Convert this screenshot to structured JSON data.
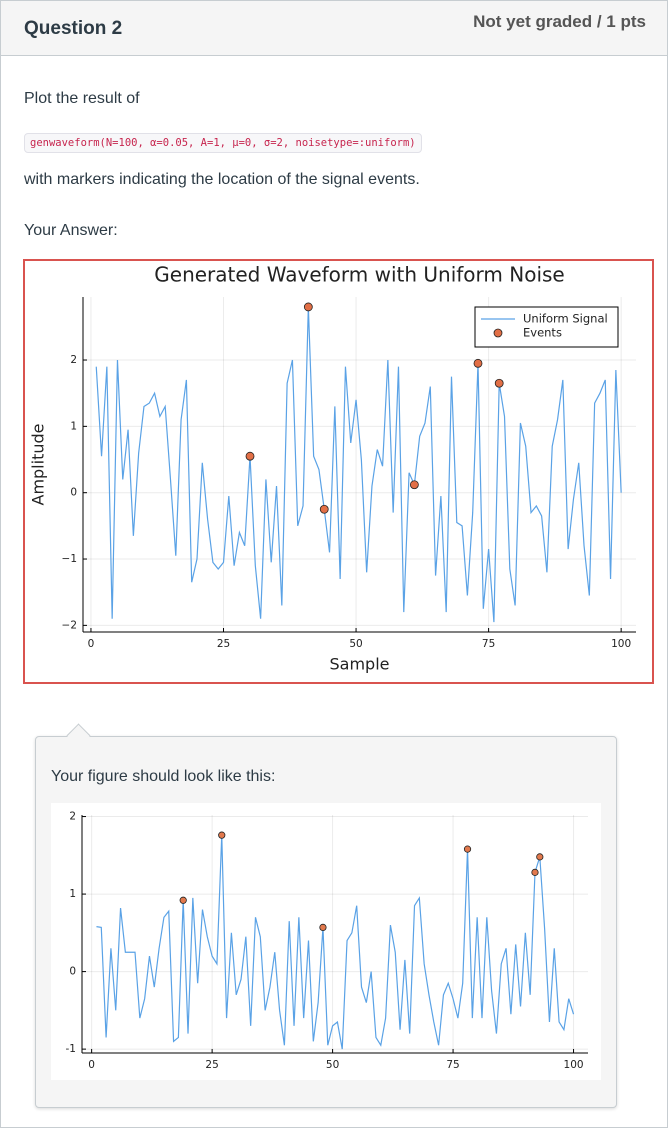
{
  "header": {
    "title": "Question 2",
    "status": "Not yet graded / 1 pts"
  },
  "question": {
    "intro": "Plot the result of",
    "code": "genwaveform(N=100, α=0.05, A=1, μ=0, σ=2, noisetype=:uniform)",
    "outro": "with markers indicating the location of the signal events."
  },
  "answer_label": "Your Answer:",
  "hint": "Your figure should look like this:",
  "chart_data": [
    {
      "type": "line",
      "title": "Generated Waveform with Uniform Noise",
      "xlabel": "Sample",
      "ylabel": "Amplitude",
      "xlim": [
        -1.5,
        102.8
      ],
      "ylim": [
        -2.1,
        2.95
      ],
      "xticks": [
        0,
        25,
        50,
        75,
        100
      ],
      "yticks": [
        {
          "value": -2,
          "label": "−2"
        },
        {
          "value": -1,
          "label": "−1"
        },
        0,
        1,
        2
      ],
      "grid": true,
      "legend": "top-right",
      "series": [
        {
          "name": "Uniform Signal",
          "type": "line",
          "color": "#5aa2e6",
          "x": [
            1,
            2,
            3,
            4,
            5,
            6,
            7,
            8,
            9,
            10,
            11,
            12,
            13,
            14,
            15,
            16,
            17,
            18,
            19,
            20,
            21,
            22,
            23,
            24,
            25,
            26,
            27,
            28,
            29,
            30,
            31,
            32,
            33,
            34,
            35,
            36,
            37,
            38,
            39,
            40,
            41,
            42,
            43,
            44,
            45,
            46,
            47,
            48,
            49,
            50,
            51,
            52,
            53,
            54,
            55,
            56,
            57,
            58,
            59,
            60,
            61,
            62,
            63,
            64,
            65,
            66,
            67,
            68,
            69,
            70,
            71,
            72,
            73,
            74,
            75,
            76,
            77,
            78,
            79,
            80,
            81,
            82,
            83,
            84,
            85,
            86,
            87,
            88,
            89,
            90,
            91,
            92,
            93,
            94,
            95,
            96,
            97,
            98,
            99,
            100
          ],
          "values": [
            1.9,
            0.55,
            1.9,
            -1.9,
            2.0,
            0.2,
            0.95,
            -0.65,
            0.6,
            1.3,
            1.35,
            1.5,
            1.15,
            1.3,
            0.2,
            -0.95,
            1.1,
            1.7,
            -1.35,
            -1.0,
            0.45,
            -0.4,
            -1.05,
            -1.15,
            -1.05,
            -0.05,
            -1.1,
            -0.6,
            -0.8,
            0.55,
            -1.1,
            -1.9,
            0.2,
            -1.05,
            0.1,
            -1.7,
            1.65,
            2.0,
            -0.5,
            -0.2,
            2.8,
            0.55,
            0.35,
            -0.25,
            -0.9,
            1.3,
            -1.3,
            1.9,
            0.75,
            1.4,
            0.5,
            -1.2,
            0.1,
            0.65,
            0.4,
            2.0,
            -0.3,
            1.9,
            -1.8,
            0.3,
            0.12,
            0.85,
            1.05,
            1.6,
            -1.25,
            -0.05,
            -1.8,
            1.75,
            -0.45,
            -0.5,
            -1.55,
            -0.3,
            1.95,
            -1.75,
            -0.85,
            -1.95,
            1.65,
            1.15,
            -1.15,
            -1.7,
            1.05,
            0.7,
            -0.3,
            -0.2,
            -0.35,
            -1.2,
            0.7,
            1.1,
            1.7,
            -0.85,
            -0.1,
            0.45,
            -0.8,
            -1.55,
            1.35,
            1.5,
            1.7,
            -1.3,
            1.85,
            0.0
          ]
        },
        {
          "name": "Events",
          "type": "scatter",
          "color": "#e26f46",
          "x": [
            30,
            41,
            44,
            61,
            73,
            77
          ],
          "values": [
            0.55,
            2.8,
            -0.25,
            0.12,
            1.95,
            1.65
          ]
        }
      ]
    },
    {
      "type": "line",
      "xlim": [
        -2,
        103
      ],
      "ylim": [
        -1.05,
        2.02
      ],
      "xticks": [
        0,
        25,
        50,
        75,
        100
      ],
      "yticks": [
        -1,
        0,
        1,
        2
      ],
      "grid": true,
      "series": [
        {
          "type": "line",
          "color": "#5aa2e6",
          "x": [
            1,
            2,
            3,
            4,
            5,
            6,
            7,
            8,
            9,
            10,
            11,
            12,
            13,
            14,
            15,
            16,
            17,
            18,
            19,
            20,
            21,
            22,
            23,
            24,
            25,
            26,
            27,
            28,
            29,
            30,
            31,
            32,
            33,
            34,
            35,
            36,
            37,
            38,
            39,
            40,
            41,
            42,
            43,
            44,
            45,
            46,
            47,
            48,
            49,
            50,
            51,
            52,
            53,
            54,
            55,
            56,
            57,
            58,
            59,
            60,
            61,
            62,
            63,
            64,
            65,
            66,
            67,
            68,
            69,
            70,
            71,
            72,
            73,
            74,
            75,
            76,
            77,
            78,
            79,
            80,
            81,
            82,
            83,
            84,
            85,
            86,
            87,
            88,
            89,
            90,
            91,
            92,
            93,
            94,
            95,
            96,
            97,
            98,
            99,
            100
          ],
          "values": [
            0.58,
            0.57,
            -0.85,
            0.3,
            -0.5,
            0.82,
            0.25,
            0.25,
            0.25,
            -0.6,
            -0.35,
            0.2,
            -0.2,
            0.3,
            0.7,
            0.78,
            -0.9,
            -0.85,
            0.92,
            -0.8,
            0.95,
            -0.15,
            0.8,
            0.45,
            0.2,
            0.1,
            1.76,
            -0.6,
            0.5,
            -0.3,
            -0.1,
            0.45,
            -0.7,
            0.7,
            0.45,
            -0.5,
            -0.2,
            0.25,
            -0.5,
            -0.95,
            0.65,
            -0.7,
            0.7,
            -0.6,
            0.4,
            -0.9,
            -0.4,
            0.57,
            -0.95,
            -0.7,
            -0.65,
            -1.0,
            0.4,
            0.5,
            0.85,
            -0.2,
            -0.4,
            0.0,
            -0.85,
            -0.95,
            -0.6,
            0.6,
            0.25,
            -0.75,
            0.15,
            -0.8,
            0.85,
            0.95,
            0.1,
            -0.3,
            -0.65,
            -0.95,
            -0.3,
            -0.15,
            -0.35,
            -0.6,
            -0.15,
            1.58,
            -0.6,
            0.7,
            -0.6,
            0.7,
            -0.25,
            -0.8,
            0.1,
            0.3,
            -0.55,
            0.35,
            -0.45,
            0.5,
            -0.3,
            1.28,
            1.48,
            0.55,
            -0.65,
            0.3,
            -0.65,
            -0.75,
            -0.35,
            -0.55
          ]
        },
        {
          "type": "scatter",
          "color": "#e2794d",
          "x": [
            19,
            27,
            48,
            78,
            92,
            93
          ],
          "values": [
            0.92,
            1.76,
            0.57,
            1.58,
            1.28,
            1.48
          ]
        }
      ]
    }
  ]
}
